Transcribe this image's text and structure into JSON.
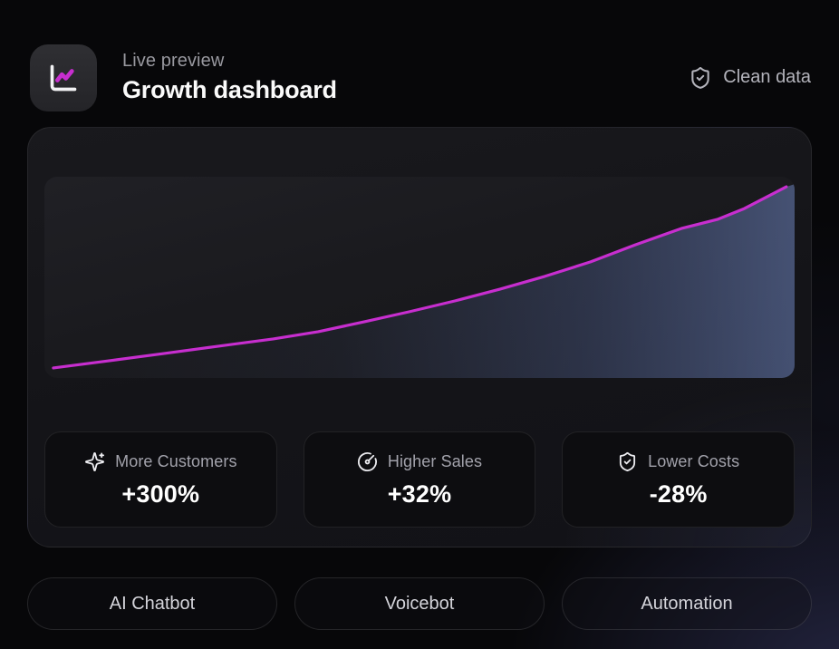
{
  "header": {
    "subtitle": "Live preview",
    "title": "Growth dashboard",
    "badge": {
      "icon": "shield-check-icon",
      "label": "Clean data"
    }
  },
  "chart_data": {
    "type": "area",
    "title": "",
    "xlabel": "",
    "ylabel": "",
    "grid": false,
    "legend": false,
    "ylim": [
      0,
      100
    ],
    "x": [
      1.2,
      8.7,
      16.0,
      23.2,
      30.5,
      36.5,
      42.6,
      48.6,
      54.7,
      60.7,
      66.7,
      72.8,
      78.8,
      84.9,
      89.7,
      93.3,
      98.9
    ],
    "y": [
      5.0,
      8.6,
      12.2,
      15.8,
      19.4,
      23.0,
      27.9,
      32.9,
      38.3,
      44.1,
      50.5,
      57.7,
      66.2,
      74.3,
      78.8,
      84.2,
      95.0
    ],
    "line_color": "#c72ecf",
    "area_color": "#5a6ea8"
  },
  "stats": [
    {
      "icon": "sparkles-icon",
      "label": "More Customers",
      "value": "+300%"
    },
    {
      "icon": "gauge-icon",
      "label": "Higher Sales",
      "value": "+32%"
    },
    {
      "icon": "shield-check-icon",
      "label": "Lower Costs",
      "value": "-28%"
    }
  ],
  "footer_tabs": [
    {
      "label": "AI Chatbot"
    },
    {
      "label": "Voicebot"
    },
    {
      "label": "Automation"
    }
  ],
  "colors": {
    "accent": "#c72ecf",
    "background": "#070709",
    "card": "#141418",
    "glow": "#6468be"
  }
}
